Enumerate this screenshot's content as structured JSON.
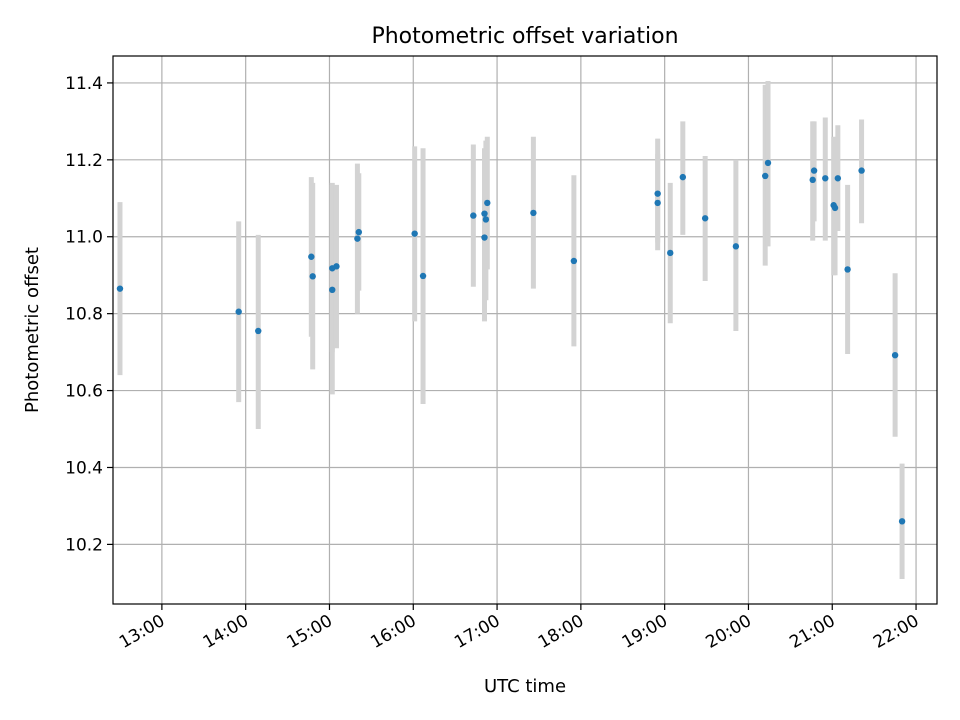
{
  "chart_data": {
    "type": "scatter",
    "title": "Photometric offset variation",
    "xlabel": "UTC time",
    "ylabel": "Photometric offset",
    "xlim": [
      "12:25",
      "22:15"
    ],
    "ylim": [
      10.045,
      11.47
    ],
    "grid": true,
    "x_ticks": [
      "13:00",
      "14:00",
      "15:00",
      "16:00",
      "17:00",
      "18:00",
      "19:00",
      "20:00",
      "21:00",
      "22:00"
    ],
    "y_ticks": [
      10.2,
      10.4,
      10.6,
      10.8,
      11.0,
      11.2,
      11.4
    ],
    "y_tick_labels": [
      "10.2",
      "10.4",
      "10.6",
      "10.8",
      "11.0",
      "11.2",
      "11.4"
    ],
    "colors": {
      "points": "#1f77b4",
      "errorbars": "#d3d3d3",
      "grid": "#b0b0b0"
    },
    "series": [
      {
        "points": [
          {
            "x": "12:30",
            "y": 10.865,
            "ylow": 10.64,
            "yhigh": 11.09
          },
          {
            "x": "13:55",
            "y": 10.805,
            "ylow": 10.57,
            "yhigh": 11.04
          },
          {
            "x": "14:09",
            "y": 10.755,
            "ylow": 10.5,
            "yhigh": 11.005
          },
          {
            "x": "14:47",
            "y": 10.948,
            "ylow": 10.74,
            "yhigh": 11.155
          },
          {
            "x": "14:48",
            "y": 10.897,
            "ylow": 10.655,
            "yhigh": 11.14
          },
          {
            "x": "15:02",
            "y": 10.862,
            "ylow": 10.59,
            "yhigh": 11.14
          },
          {
            "x": "15:02",
            "y": 10.918,
            "ylow": 10.7,
            "yhigh": 11.135
          },
          {
            "x": "15:05",
            "y": 10.923,
            "ylow": 10.71,
            "yhigh": 11.135
          },
          {
            "x": "15:20",
            "y": 10.995,
            "ylow": 10.8,
            "yhigh": 11.19
          },
          {
            "x": "15:21",
            "y": 11.012,
            "ylow": 10.86,
            "yhigh": 11.165
          },
          {
            "x": "16:01",
            "y": 11.008,
            "ylow": 10.78,
            "yhigh": 11.235
          },
          {
            "x": "16:07",
            "y": 10.898,
            "ylow": 10.565,
            "yhigh": 11.23
          },
          {
            "x": "16:43",
            "y": 11.055,
            "ylow": 10.87,
            "yhigh": 11.24
          },
          {
            "x": "16:51",
            "y": 10.998,
            "ylow": 10.78,
            "yhigh": 11.215
          },
          {
            "x": "16:51",
            "y": 11.06,
            "ylow": 10.86,
            "yhigh": 11.23
          },
          {
            "x": "16:52",
            "y": 11.045,
            "ylow": 10.835,
            "yhigh": 11.25
          },
          {
            "x": "16:53",
            "y": 11.088,
            "ylow": 10.915,
            "yhigh": 11.26
          },
          {
            "x": "17:26",
            "y": 11.062,
            "ylow": 10.865,
            "yhigh": 11.26
          },
          {
            "x": "17:55",
            "y": 10.937,
            "ylow": 10.715,
            "yhigh": 11.16
          },
          {
            "x": "18:55",
            "y": 11.112,
            "ylow": 10.985,
            "yhigh": 11.255
          },
          {
            "x": "18:55",
            "y": 11.088,
            "ylow": 10.965,
            "yhigh": 11.215
          },
          {
            "x": "19:04",
            "y": 10.958,
            "ylow": 10.775,
            "yhigh": 11.14
          },
          {
            "x": "19:13",
            "y": 11.155,
            "ylow": 11.005,
            "yhigh": 11.3
          },
          {
            "x": "19:29",
            "y": 11.048,
            "ylow": 10.885,
            "yhigh": 11.21
          },
          {
            "x": "19:51",
            "y": 10.975,
            "ylow": 10.755,
            "yhigh": 11.2
          },
          {
            "x": "20:12",
            "y": 11.158,
            "ylow": 10.925,
            "yhigh": 11.395
          },
          {
            "x": "20:14",
            "y": 11.192,
            "ylow": 10.975,
            "yhigh": 11.405
          },
          {
            "x": "20:46",
            "y": 11.148,
            "ylow": 10.99,
            "yhigh": 11.3
          },
          {
            "x": "20:47",
            "y": 11.172,
            "ylow": 11.04,
            "yhigh": 11.3
          },
          {
            "x": "20:55",
            "y": 11.152,
            "ylow": 10.99,
            "yhigh": 11.31
          },
          {
            "x": "21:01",
            "y": 11.082,
            "ylow": 10.9,
            "yhigh": 11.26
          },
          {
            "x": "21:02",
            "y": 11.075,
            "ylow": 10.9,
            "yhigh": 11.25
          },
          {
            "x": "21:04",
            "y": 11.152,
            "ylow": 11.015,
            "yhigh": 11.29
          },
          {
            "x": "21:11",
            "y": 10.915,
            "ylow": 10.695,
            "yhigh": 11.135
          },
          {
            "x": "21:21",
            "y": 11.172,
            "ylow": 11.035,
            "yhigh": 11.305
          },
          {
            "x": "21:45",
            "y": 10.692,
            "ylow": 10.48,
            "yhigh": 10.905
          },
          {
            "x": "21:50",
            "y": 10.26,
            "ylow": 10.11,
            "yhigh": 10.41
          }
        ]
      }
    ]
  }
}
